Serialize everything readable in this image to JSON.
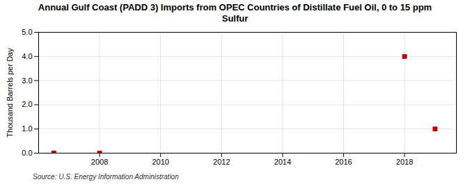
{
  "chart_data": {
    "type": "scatter",
    "title": "Annual Gulf Coast (PADD 3) Imports from OPEC Countries of Distillate Fuel Oil, 0 to 15 ppm\nSulfur",
    "ylabel": "Thousand Barrels per Day",
    "source": "Source: U.S. Energy Information Administration",
    "x": [
      2006.5,
      2008.0,
      2018.0,
      2019.0
    ],
    "values": [
      0.0,
      0.0,
      4.0,
      1.0
    ],
    "color": "#bb0000",
    "marker": "square",
    "xlim": [
      2006.0,
      2019.7
    ],
    "ylim": [
      0.0,
      5.0
    ],
    "xticks": [
      2008,
      2010,
      2012,
      2014,
      2016,
      2018
    ],
    "yticks": [
      {
        "value": 0.0,
        "label": "0.0"
      },
      {
        "value": 1.0,
        "label": "1.0"
      },
      {
        "value": 2.0,
        "label": "2.0"
      },
      {
        "value": 3.0,
        "label": "3.0"
      },
      {
        "value": 4.0,
        "label": "4.0"
      },
      {
        "value": 5.0,
        "label": "5.0"
      }
    ],
    "grid": true
  }
}
